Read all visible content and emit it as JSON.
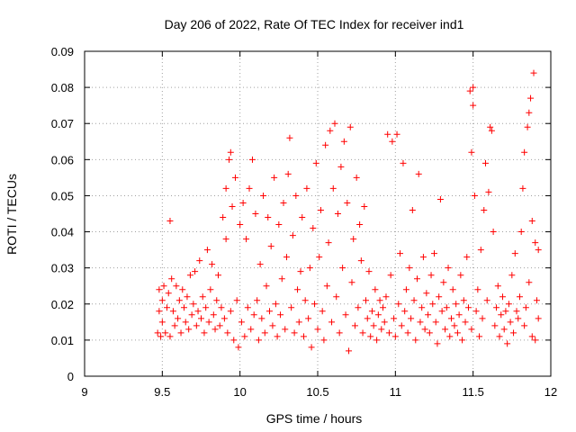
{
  "chart_data": {
    "type": "scatter",
    "title": "Day 206 of 2022, Rate Of TEC Index for receiver ind1",
    "xlabel": "GPS time / hours",
    "ylabel": "ROTI / TECUs",
    "xlim": [
      9,
      12
    ],
    "ylim": [
      0,
      0.09
    ],
    "x_ticks": [
      "9",
      "9.5",
      "10",
      "10.5",
      "11",
      "11.5",
      "12"
    ],
    "y_ticks": [
      "0",
      "0.01",
      "0.02",
      "0.03",
      "0.04",
      "0.05",
      "0.06",
      "0.07",
      "0.08",
      "0.09"
    ],
    "grid": true,
    "marker": "plus",
    "color": "#ff0000",
    "series": [
      {
        "points": [
          [
            9.47,
            0.012
          ],
          [
            9.48,
            0.018
          ],
          [
            9.48,
            0.024
          ],
          [
            9.49,
            0.011
          ],
          [
            9.5,
            0.021
          ],
          [
            9.5,
            0.015
          ],
          [
            9.51,
            0.025
          ],
          [
            9.52,
            0.012
          ],
          [
            9.53,
            0.019
          ],
          [
            9.54,
            0.023
          ],
          [
            9.55,
            0.011
          ],
          [
            9.55,
            0.043
          ],
          [
            9.56,
            0.027
          ],
          [
            9.57,
            0.018
          ],
          [
            9.58,
            0.014
          ],
          [
            9.59,
            0.025
          ],
          [
            9.6,
            0.016
          ],
          [
            9.61,
            0.021
          ],
          [
            9.62,
            0.012
          ],
          [
            9.63,
            0.024
          ],
          [
            9.64,
            0.019
          ],
          [
            9.65,
            0.015
          ],
          [
            9.66,
            0.022
          ],
          [
            9.67,
            0.013
          ],
          [
            9.68,
            0.028
          ],
          [
            9.69,
            0.017
          ],
          [
            9.7,
            0.02
          ],
          [
            9.71,
            0.029
          ],
          [
            9.72,
            0.014
          ],
          [
            9.73,
            0.018
          ],
          [
            9.74,
            0.032
          ],
          [
            9.75,
            0.016
          ],
          [
            9.76,
            0.022
          ],
          [
            9.77,
            0.012
          ],
          [
            9.78,
            0.019
          ],
          [
            9.79,
            0.035
          ],
          [
            9.8,
            0.015
          ],
          [
            9.81,
            0.024
          ],
          [
            9.82,
            0.031
          ],
          [
            9.83,
            0.017
          ],
          [
            9.84,
            0.013
          ],
          [
            9.85,
            0.021
          ],
          [
            9.86,
            0.028
          ],
          [
            9.87,
            0.014
          ],
          [
            9.88,
            0.019
          ],
          [
            9.89,
            0.044
          ],
          [
            9.9,
            0.016
          ],
          [
            9.91,
            0.038
          ],
          [
            9.91,
            0.052
          ],
          [
            9.92,
            0.012
          ],
          [
            9.93,
            0.06
          ],
          [
            9.94,
            0.062
          ],
          [
            9.94,
            0.018
          ],
          [
            9.95,
            0.047
          ],
          [
            9.96,
            0.01
          ],
          [
            9.97,
            0.055
          ],
          [
            9.98,
            0.021
          ],
          [
            9.99,
            0.008
          ],
          [
            10.0,
            0.042
          ],
          [
            10.01,
            0.015
          ],
          [
            10.02,
            0.048
          ],
          [
            10.03,
            0.011
          ],
          [
            10.04,
            0.038
          ],
          [
            10.05,
            0.019
          ],
          [
            10.06,
            0.052
          ],
          [
            10.07,
            0.013
          ],
          [
            10.08,
            0.06
          ],
          [
            10.09,
            0.017
          ],
          [
            10.1,
            0.045
          ],
          [
            10.11,
            0.021
          ],
          [
            10.12,
            0.01
          ],
          [
            10.13,
            0.031
          ],
          [
            10.14,
            0.016
          ],
          [
            10.15,
            0.05
          ],
          [
            10.16,
            0.012
          ],
          [
            10.17,
            0.025
          ],
          [
            10.18,
            0.044
          ],
          [
            10.19,
            0.018
          ],
          [
            10.2,
            0.036
          ],
          [
            10.21,
            0.014
          ],
          [
            10.22,
            0.055
          ],
          [
            10.23,
            0.02
          ],
          [
            10.24,
            0.011
          ],
          [
            10.25,
            0.042
          ],
          [
            10.26,
            0.017
          ],
          [
            10.27,
            0.027
          ],
          [
            10.28,
            0.048
          ],
          [
            10.29,
            0.013
          ],
          [
            10.3,
            0.033
          ],
          [
            10.31,
            0.056
          ],
          [
            10.32,
            0.066
          ],
          [
            10.33,
            0.019
          ],
          [
            10.34,
            0.039
          ],
          [
            10.35,
            0.012
          ],
          [
            10.36,
            0.05
          ],
          [
            10.37,
            0.024
          ],
          [
            10.38,
            0.015
          ],
          [
            10.39,
            0.029
          ],
          [
            10.4,
            0.044
          ],
          [
            10.41,
            0.011
          ],
          [
            10.42,
            0.021
          ],
          [
            10.43,
            0.052
          ],
          [
            10.44,
            0.016
          ],
          [
            10.45,
            0.03
          ],
          [
            10.46,
            0.008
          ],
          [
            10.47,
            0.041
          ],
          [
            10.48,
            0.02
          ],
          [
            10.49,
            0.059
          ],
          [
            10.5,
            0.013
          ],
          [
            10.51,
            0.033
          ],
          [
            10.52,
            0.046
          ],
          [
            10.53,
            0.018
          ],
          [
            10.54,
            0.01
          ],
          [
            10.55,
            0.064
          ],
          [
            10.56,
            0.025
          ],
          [
            10.57,
            0.037
          ],
          [
            10.58,
            0.068
          ],
          [
            10.59,
            0.015
          ],
          [
            10.6,
            0.052
          ],
          [
            10.61,
            0.07
          ],
          [
            10.62,
            0.022
          ],
          [
            10.63,
            0.045
          ],
          [
            10.64,
            0.012
          ],
          [
            10.65,
            0.058
          ],
          [
            10.66,
            0.03
          ],
          [
            10.67,
            0.065
          ],
          [
            10.68,
            0.017
          ],
          [
            10.69,
            0.048
          ],
          [
            10.7,
            0.007
          ],
          [
            10.71,
            0.069
          ],
          [
            10.72,
            0.026
          ],
          [
            10.73,
            0.038
          ],
          [
            10.74,
            0.014
          ],
          [
            10.75,
            0.055
          ],
          [
            10.76,
            0.019
          ],
          [
            10.77,
            0.042
          ],
          [
            10.78,
            0.032
          ],
          [
            10.79,
            0.012
          ],
          [
            10.8,
            0.047
          ],
          [
            10.81,
            0.021
          ],
          [
            10.82,
            0.016
          ],
          [
            10.83,
            0.029
          ],
          [
            10.84,
            0.011
          ],
          [
            10.85,
            0.018
          ],
          [
            10.86,
            0.014
          ],
          [
            10.87,
            0.024
          ],
          [
            10.88,
            0.01
          ],
          [
            10.89,
            0.017
          ],
          [
            10.9,
            0.021
          ],
          [
            10.91,
            0.013
          ],
          [
            10.92,
            0.019
          ],
          [
            10.93,
            0.015
          ],
          [
            10.94,
            0.022
          ],
          [
            10.95,
            0.067
          ],
          [
            10.96,
            0.012
          ],
          [
            10.97,
            0.028
          ],
          [
            10.98,
            0.065
          ],
          [
            10.99,
            0.016
          ],
          [
            11.0,
            0.011
          ],
          [
            11.01,
            0.067
          ],
          [
            11.02,
            0.02
          ],
          [
            11.03,
            0.034
          ],
          [
            11.04,
            0.014
          ],
          [
            11.05,
            0.059
          ],
          [
            11.06,
            0.018
          ],
          [
            11.07,
            0.024
          ],
          [
            11.08,
            0.012
          ],
          [
            11.09,
            0.03
          ],
          [
            11.1,
            0.016
          ],
          [
            11.11,
            0.046
          ],
          [
            11.12,
            0.021
          ],
          [
            11.13,
            0.01
          ],
          [
            11.14,
            0.027
          ],
          [
            11.15,
            0.056
          ],
          [
            11.16,
            0.015
          ],
          [
            11.17,
            0.019
          ],
          [
            11.18,
            0.033
          ],
          [
            11.19,
            0.013
          ],
          [
            11.2,
            0.023
          ],
          [
            11.21,
            0.017
          ],
          [
            11.22,
            0.012
          ],
          [
            11.23,
            0.028
          ],
          [
            11.24,
            0.02
          ],
          [
            11.25,
            0.034
          ],
          [
            11.26,
            0.015
          ],
          [
            11.27,
            0.009
          ],
          [
            11.28,
            0.022
          ],
          [
            11.29,
            0.049
          ],
          [
            11.3,
            0.018
          ],
          [
            11.31,
            0.026
          ],
          [
            11.32,
            0.013
          ],
          [
            11.33,
            0.019
          ],
          [
            11.34,
            0.03
          ],
          [
            11.35,
            0.011
          ],
          [
            11.36,
            0.016
          ],
          [
            11.37,
            0.024
          ],
          [
            11.38,
            0.014
          ],
          [
            11.39,
            0.02
          ],
          [
            11.4,
            0.012
          ],
          [
            11.41,
            0.017
          ],
          [
            11.42,
            0.028
          ],
          [
            11.43,
            0.01
          ],
          [
            11.44,
            0.021
          ],
          [
            11.45,
            0.015
          ],
          [
            11.46,
            0.033
          ],
          [
            11.47,
            0.019
          ],
          [
            11.48,
            0.079
          ],
          [
            11.49,
            0.062
          ],
          [
            11.49,
            0.013
          ],
          [
            11.5,
            0.08
          ],
          [
            11.5,
            0.075
          ],
          [
            11.51,
            0.05
          ],
          [
            11.52,
            0.018
          ],
          [
            11.53,
            0.024
          ],
          [
            11.54,
            0.011
          ],
          [
            11.55,
            0.035
          ],
          [
            11.56,
            0.016
          ],
          [
            11.57,
            0.046
          ],
          [
            11.58,
            0.059
          ],
          [
            11.59,
            0.021
          ],
          [
            11.6,
            0.051
          ],
          [
            11.61,
            0.069
          ],
          [
            11.62,
            0.068
          ],
          [
            11.63,
            0.04
          ],
          [
            11.64,
            0.014
          ],
          [
            11.65,
            0.019
          ],
          [
            11.66,
            0.025
          ],
          [
            11.67,
            0.011
          ],
          [
            11.68,
            0.017
          ],
          [
            11.69,
            0.022
          ],
          [
            11.7,
            0.013
          ],
          [
            11.71,
            0.018
          ],
          [
            11.72,
            0.009
          ],
          [
            11.73,
            0.02
          ],
          [
            11.74,
            0.015
          ],
          [
            11.75,
            0.028
          ],
          [
            11.76,
            0.012
          ],
          [
            11.77,
            0.034
          ],
          [
            11.78,
            0.018
          ],
          [
            11.79,
            0.016
          ],
          [
            11.8,
            0.022
          ],
          [
            11.81,
            0.04
          ],
          [
            11.82,
            0.052
          ],
          [
            11.83,
            0.062
          ],
          [
            11.83,
            0.014
          ],
          [
            11.84,
            0.019
          ],
          [
            11.85,
            0.069
          ],
          [
            11.86,
            0.073
          ],
          [
            11.86,
            0.026
          ],
          [
            11.87,
            0.077
          ],
          [
            11.88,
            0.043
          ],
          [
            11.88,
            0.011
          ],
          [
            11.89,
            0.084
          ],
          [
            11.9,
            0.037
          ],
          [
            11.9,
            0.01
          ],
          [
            11.91,
            0.021
          ],
          [
            11.92,
            0.035
          ],
          [
            11.92,
            0.016
          ]
        ]
      }
    ]
  }
}
